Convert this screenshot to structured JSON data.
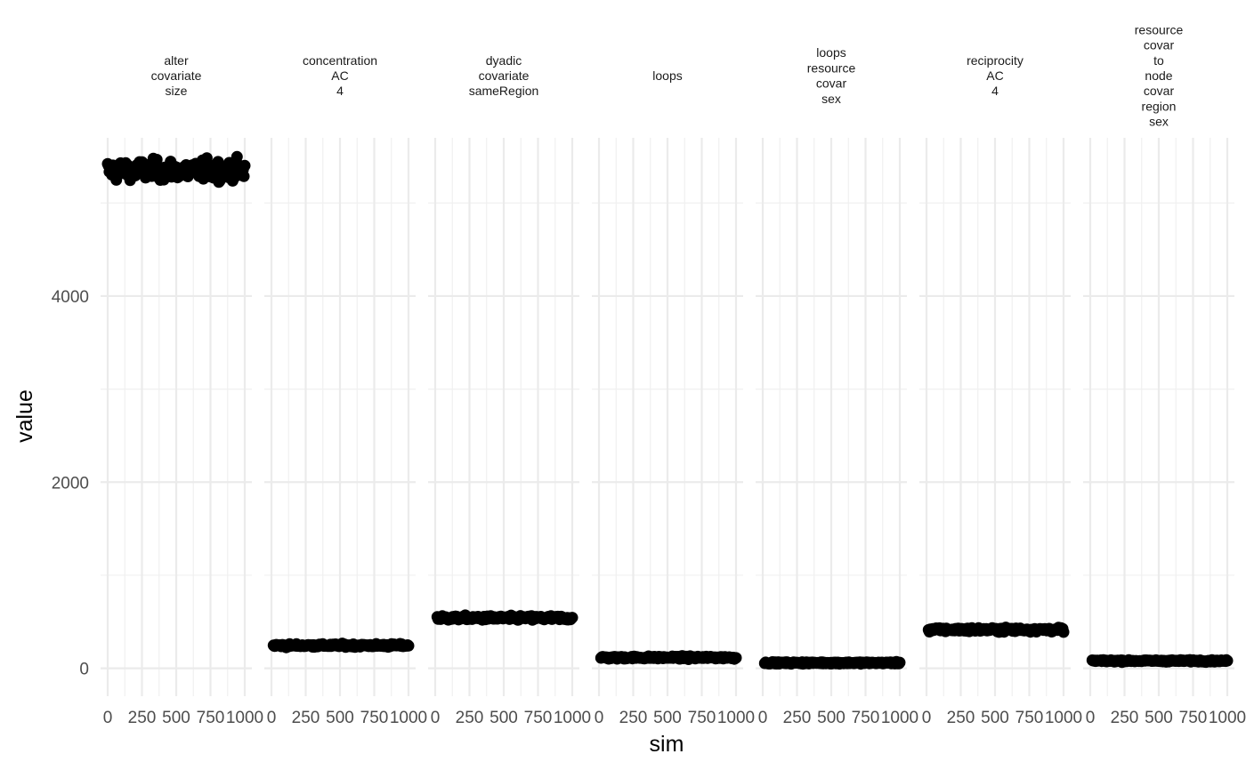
{
  "chart_data": {
    "type": "scatter",
    "xlabel": "sim",
    "ylabel": "value",
    "x_range": [
      0,
      1000
    ],
    "ylim": [
      -300,
      5700
    ],
    "y_ticks": [
      0,
      2000,
      4000
    ],
    "y_tick_labels": [
      "0",
      "2000",
      "4000"
    ],
    "y_minor": [
      1000,
      3000,
      5000
    ],
    "x_ticks": [
      0,
      250,
      500,
      750,
      1000
    ],
    "x_tick_labels": [
      "0",
      "250",
      "500",
      "750",
      "1000"
    ],
    "grid": true,
    "point_color": "#000000",
    "panels": [
      {
        "strip": [
          "alter",
          "covariate",
          "size"
        ],
        "mean": 5350,
        "spread": 90,
        "x_start": 0
      },
      {
        "strip": [
          "concentration",
          "AC",
          "4"
        ],
        "mean": 245,
        "spread": 14,
        "x_start": 15
      },
      {
        "strip": [
          "dyadic",
          "covariate",
          "sameRegion"
        ],
        "mean": 540,
        "spread": 20,
        "x_start": 15
      },
      {
        "strip": [
          "loops"
        ],
        "mean": 115,
        "spread": 12,
        "x_start": 15
      },
      {
        "strip": [
          "loops",
          "resource",
          "covar",
          "sex"
        ],
        "mean": 58,
        "spread": 8,
        "x_start": 15
      },
      {
        "strip": [
          "reciprocity",
          "AC",
          "4"
        ],
        "mean": 415,
        "spread": 18,
        "x_start": 15
      },
      {
        "strip": [
          "resource",
          "covar",
          "to",
          "node",
          "covar",
          "region",
          "sex"
        ],
        "mean": 80,
        "spread": 8,
        "x_start": 15
      }
    ]
  }
}
